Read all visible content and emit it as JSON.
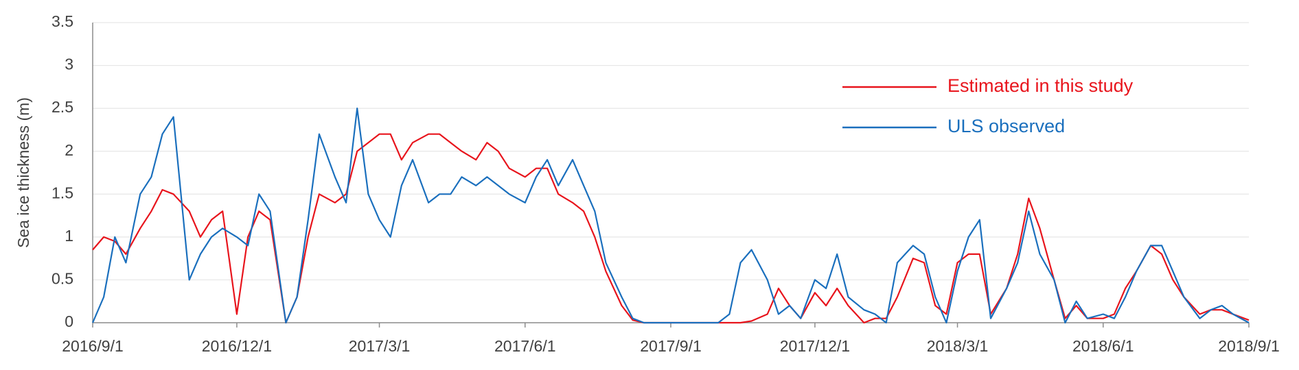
{
  "chart_data": {
    "type": "line",
    "y_label": "Sea ice thickness (m)",
    "x": [
      "2016/9/1",
      "2016/9/8",
      "2016/9/15",
      "2016/9/22",
      "2016/10/1",
      "2016/10/8",
      "2016/10/15",
      "2016/10/22",
      "2016/11/1",
      "2016/11/8",
      "2016/11/15",
      "2016/11/22",
      "2016/12/1",
      "2016/12/8",
      "2016/12/15",
      "2016/12/22",
      "2017/1/1",
      "2017/1/8",
      "2017/1/15",
      "2017/1/22",
      "2017/2/1",
      "2017/2/8",
      "2017/2/15",
      "2017/2/22",
      "2017/3/1",
      "2017/3/8",
      "2017/3/15",
      "2017/3/22",
      "2017/4/1",
      "2017/4/8",
      "2017/4/15",
      "2017/4/22",
      "2017/5/1",
      "2017/5/8",
      "2017/5/15",
      "2017/5/22",
      "2017/6/1",
      "2017/6/8",
      "2017/6/15",
      "2017/6/22",
      "2017/7/1",
      "2017/7/8",
      "2017/7/15",
      "2017/7/22",
      "2017/8/1",
      "2017/8/8",
      "2017/8/15",
      "2017/8/22",
      "2017/9/1",
      "2017/9/8",
      "2017/9/15",
      "2017/9/22",
      "2017/10/1",
      "2017/10/8",
      "2017/10/15",
      "2017/10/22",
      "2017/11/1",
      "2017/11/8",
      "2017/11/15",
      "2017/11/22",
      "2017/12/1",
      "2017/12/8",
      "2017/12/15",
      "2017/12/22",
      "2018/1/1",
      "2018/1/8",
      "2018/1/15",
      "2018/1/22",
      "2018/2/1",
      "2018/2/8",
      "2018/2/15",
      "2018/2/22",
      "2018/3/1",
      "2018/3/8",
      "2018/3/15",
      "2018/3/22",
      "2018/4/1",
      "2018/4/8",
      "2018/4/15",
      "2018/4/22",
      "2018/5/1",
      "2018/5/8",
      "2018/5/15",
      "2018/5/22",
      "2018/6/1",
      "2018/6/8",
      "2018/6/15",
      "2018/6/22",
      "2018/7/1",
      "2018/7/8",
      "2018/7/15",
      "2018/7/22",
      "2018/8/1",
      "2018/8/8",
      "2018/8/15",
      "2018/8/22",
      "2018/9/1"
    ],
    "series": [
      {
        "name": "Estimated in this study",
        "color": "#e8141c",
        "values": [
          0.85,
          1.0,
          0.95,
          0.8,
          1.1,
          1.3,
          1.55,
          1.5,
          1.3,
          1.0,
          1.2,
          1.3,
          0.1,
          1.0,
          1.3,
          1.2,
          0,
          0.3,
          1.0,
          1.5,
          1.4,
          1.5,
          2.0,
          2.1,
          2.2,
          2.2,
          1.9,
          2.1,
          2.2,
          2.2,
          2.1,
          2.0,
          1.9,
          2.1,
          2.0,
          1.8,
          1.7,
          1.8,
          1.8,
          1.5,
          1.4,
          1.3,
          1.0,
          0.6,
          0.2,
          0.03,
          0,
          0,
          0,
          0,
          0,
          0,
          0,
          0,
          0,
          0.02,
          0.1,
          0.4,
          0.2,
          0.05,
          0.35,
          0.2,
          0.4,
          0.2,
          0,
          0.05,
          0.05,
          0.3,
          0.75,
          0.7,
          0.2,
          0.1,
          0.7,
          0.8,
          0.8,
          0.1,
          0.4,
          0.8,
          1.45,
          1.1,
          0.5,
          0.05,
          0.2,
          0.05,
          0.05,
          0.1,
          0.4,
          0.6,
          0.9,
          0.8,
          0.5,
          0.3,
          0.1,
          0.15,
          0.15,
          0.1,
          0.03
        ]
      },
      {
        "name": "ULS observed",
        "color": "#1a6fbd",
        "values": [
          0,
          0.3,
          1.0,
          0.7,
          1.5,
          1.7,
          2.2,
          2.4,
          0.5,
          0.8,
          1.0,
          1.1,
          1.0,
          0.9,
          1.5,
          1.3,
          0,
          0.3,
          1.2,
          2.2,
          1.7,
          1.4,
          2.5,
          1.5,
          1.2,
          1.0,
          1.6,
          1.9,
          1.4,
          1.5,
          1.5,
          1.7,
          1.6,
          1.7,
          1.6,
          1.5,
          1.4,
          1.7,
          1.9,
          1.6,
          1.9,
          1.6,
          1.3,
          0.7,
          0.3,
          0.05,
          0,
          0,
          0,
          0,
          0,
          0,
          0,
          0.1,
          0.7,
          0.85,
          0.5,
          0.1,
          0.2,
          0.05,
          0.5,
          0.4,
          0.8,
          0.3,
          0.15,
          0.1,
          0,
          0.7,
          0.9,
          0.8,
          0.3,
          0,
          0.6,
          1.0,
          1.2,
          0.05,
          0.4,
          0.7,
          1.3,
          0.8,
          0.5,
          0,
          0.25,
          0.05,
          0.1,
          0.05,
          0.3,
          0.6,
          0.9,
          0.9,
          0.6,
          0.3,
          0.05,
          0.15,
          0.2,
          0.1,
          0
        ]
      }
    ],
    "xlim": [
      "2016/9/1",
      "2018/9/1"
    ],
    "xticks": [
      "2016/9/1",
      "2016/12/1",
      "2017/3/1",
      "2017/6/1",
      "2017/9/1",
      "2017/12/1",
      "2018/3/1",
      "2018/6/1",
      "2018/9/1"
    ],
    "ylim": [
      0,
      3.5
    ],
    "yticks": [
      0,
      0.5,
      1,
      1.5,
      2,
      2.5,
      3,
      3.5
    ],
    "grid": true,
    "legend": "upper right"
  }
}
